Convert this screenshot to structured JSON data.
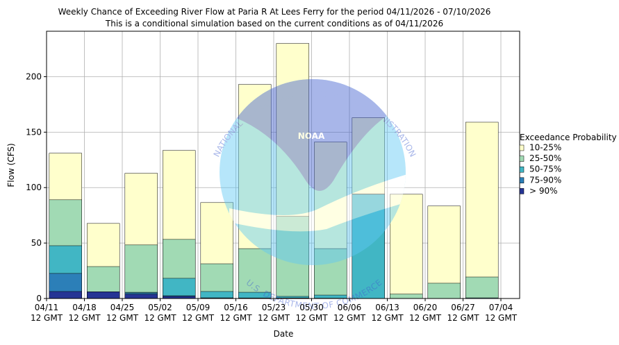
{
  "chart_data": {
    "type": "overlapping_bar",
    "title": "Weekly Chance of Exceeding River Flow at Paria R At Lees Ferry for the period 04/11/2026 - 07/10/2026",
    "subtitle": "This is a conditional simulation based on the current conditions as of 04/11/2026",
    "x_label": "Date",
    "y_label": "Flow (CFS)",
    "xticks": [
      "04/11",
      "04/18",
      "04/25",
      "05/02",
      "05/09",
      "05/16",
      "05/23",
      "05/30",
      "06/06",
      "06/13",
      "06/20",
      "06/27",
      "07/04"
    ],
    "xtick_sublabel": "12 GMT",
    "ylim": [
      0,
      241
    ],
    "yticks": [
      0,
      50,
      100,
      150,
      200
    ],
    "grid": true,
    "legend_title": "Exceedance Probability",
    "legend": "right",
    "series": [
      {
        "name": "10-25%",
        "color": "#ffffcc",
        "values": [
          131,
          67.7,
          112.9,
          133.5,
          86.5,
          193,
          230,
          141,
          163,
          94,
          83.4,
          159
        ]
      },
      {
        "name": "25-50%",
        "color": "#a1dab4",
        "values": [
          89,
          28.8,
          48.3,
          53.3,
          31.3,
          45,
          74,
          45,
          94.2,
          4,
          13.8,
          19.4
        ]
      },
      {
        "name": "50-75%",
        "color": "#41b6c4",
        "values": [
          47.6,
          6,
          5.6,
          18.2,
          6.3,
          5.6,
          1.9,
          3.1,
          94,
          0,
          0,
          0.6
        ]
      },
      {
        "name": "75-90%",
        "color": "#2c7fb8",
        "values": [
          22.6,
          6,
          5,
          2.5,
          0.6,
          0.5,
          0.5,
          0.3,
          0,
          0,
          0,
          0
        ]
      },
      {
        "name": "> 90%",
        "color": "#253494",
        "values": [
          6.3,
          6,
          3.8,
          1.9,
          0.3,
          0.2,
          0.2,
          0.1,
          0,
          0,
          0,
          0
        ]
      }
    ]
  },
  "watermark": {
    "logo": "NOAA",
    "top_text": "NATIONAL OCEANIC AND ATMOSPHERIC ADMINISTRATION",
    "bottom_text": "U.S. DEPARTMENT OF COMMERCE"
  }
}
